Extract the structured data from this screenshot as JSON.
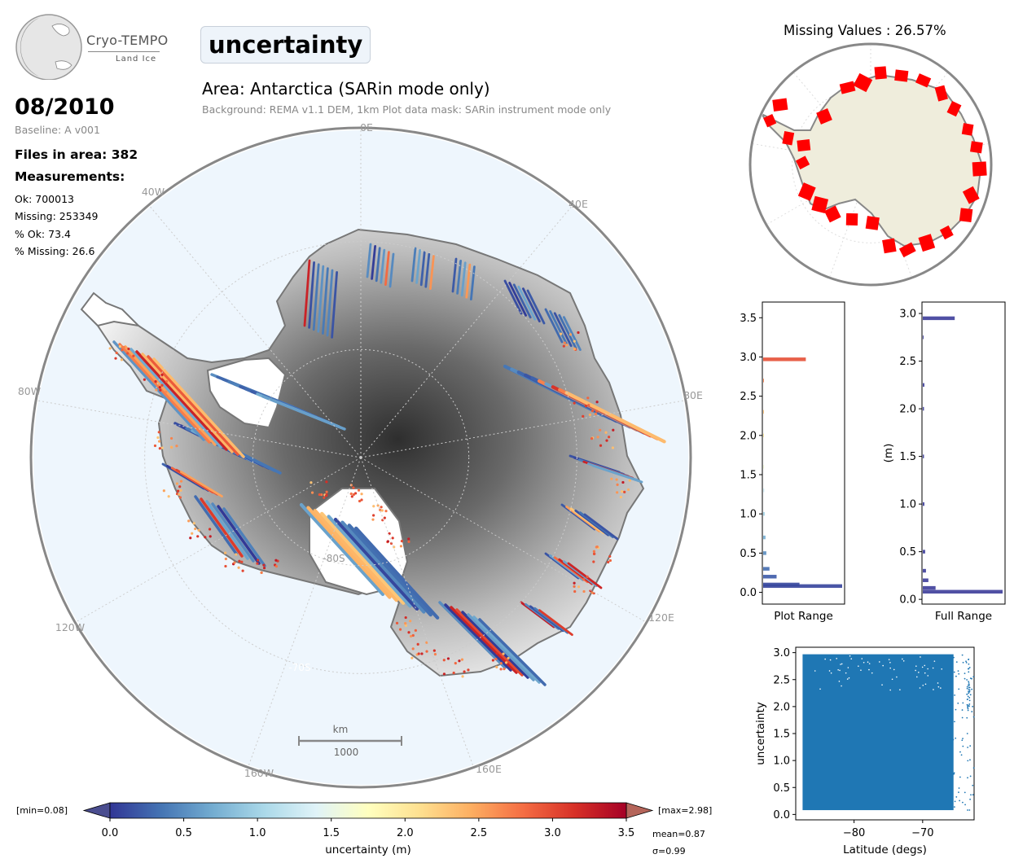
{
  "header": {
    "logo_text": "Cryo-TEMPO",
    "logo_sub": "Land Ice",
    "parameter": "uncertainty",
    "area_title": "Area: Antarctica (SARin mode only)",
    "area_subtitle": "Background: REMA v1.1 DEM, 1km   Plot data mask: SARin instrument mode only"
  },
  "info": {
    "date": "08/2010",
    "baseline": "Baseline: A v001",
    "files": "Files in area: 382",
    "measurements_heading": "Measurements:",
    "ok": "Ok: 700013",
    "missing": "Missing: 253349",
    "pct_ok": "% Ok: 73.4",
    "pct_missing": "% Missing: 26.6"
  },
  "map": {
    "lon_labels": [
      "0E",
      "40E",
      "80E",
      "120E",
      "160E",
      "160W",
      "120W",
      "80W",
      "40W"
    ],
    "lat_labels": [
      "-80S",
      "-70S"
    ],
    "scalebar_unit": "km",
    "scalebar_value": "1000",
    "colors": {
      "ocean": "#eef6fd",
      "low": "#313695",
      "mid": "#ffffbf",
      "high": "#a50026",
      "coast": "#777777"
    }
  },
  "missing_panel": {
    "title": "Missing Values : 26.57%",
    "colors": {
      "land": "#efeddc",
      "missing": "#ff0000",
      "coast": "#888888"
    }
  },
  "chart_data": [
    {
      "type": "bar",
      "orientation": "horizontal",
      "xlabel": "Plot Range",
      "ylabel": "",
      "ylim": [
        -0.15,
        3.7
      ],
      "yticks": [
        0.0,
        0.5,
        1.0,
        1.5,
        2.0,
        2.5,
        3.0,
        3.5
      ],
      "bins": [
        0.08,
        0.1,
        0.2,
        0.3,
        0.5,
        0.7,
        1.0,
        1.3,
        1.6,
        2.0,
        2.3,
        2.7,
        2.97
      ],
      "values": [
        1.0,
        0.46,
        0.17,
        0.08,
        0.04,
        0.03,
        0.02,
        0.015,
        0.012,
        0.01,
        0.01,
        0.01,
        0.54
      ],
      "color_scale": "RdYlBu_r"
    },
    {
      "type": "bar",
      "orientation": "horizontal",
      "xlabel": "Full Range",
      "ylabel": "(m)",
      "ylim": [
        -0.05,
        3.12
      ],
      "yticks": [
        0.0,
        0.5,
        1.0,
        1.5,
        2.0,
        2.5,
        3.0
      ],
      "bins": [
        0.08,
        0.12,
        0.2,
        0.3,
        0.5,
        1.0,
        1.5,
        2.0,
        2.25,
        2.75,
        2.95
      ],
      "values": [
        1.0,
        0.16,
        0.07,
        0.04,
        0.03,
        0.02,
        0.015,
        0.015,
        0.02,
        0.01,
        0.4
      ],
      "color": "#3d3d9a"
    },
    {
      "type": "scatter",
      "xlabel": "Latitude (degs)",
      "ylabel": "uncertainty",
      "xlim": [
        -88.5,
        -62.5
      ],
      "ylim": [
        -0.1,
        3.1
      ],
      "xticks": [
        -80,
        -70
      ],
      "yticks": [
        0.0,
        0.5,
        1.0,
        1.5,
        2.0,
        2.5,
        3.0
      ],
      "dense_region": {
        "x": [
          -87.5,
          -65.5
        ],
        "y": [
          0.08,
          2.97
        ]
      },
      "color": "#1f77b4"
    },
    {
      "type": "heatmap",
      "title": "",
      "colorbar_label": "uncertainty (m)",
      "range": [
        0.0,
        3.5
      ],
      "ticks": [
        0.0,
        0.5,
        1.0,
        1.5,
        2.0,
        2.5,
        3.0,
        3.5
      ],
      "min_label": "[min=0.08]",
      "max_label": "[max=2.98]",
      "mean_label": "mean=0.87",
      "sigma_label": "σ=0.99",
      "colormap": [
        "#313695",
        "#4575b4",
        "#74add1",
        "#abd9e9",
        "#e0f3f8",
        "#ffffbf",
        "#fee090",
        "#fdae61",
        "#f46d43",
        "#d73027",
        "#a50026"
      ]
    }
  ]
}
